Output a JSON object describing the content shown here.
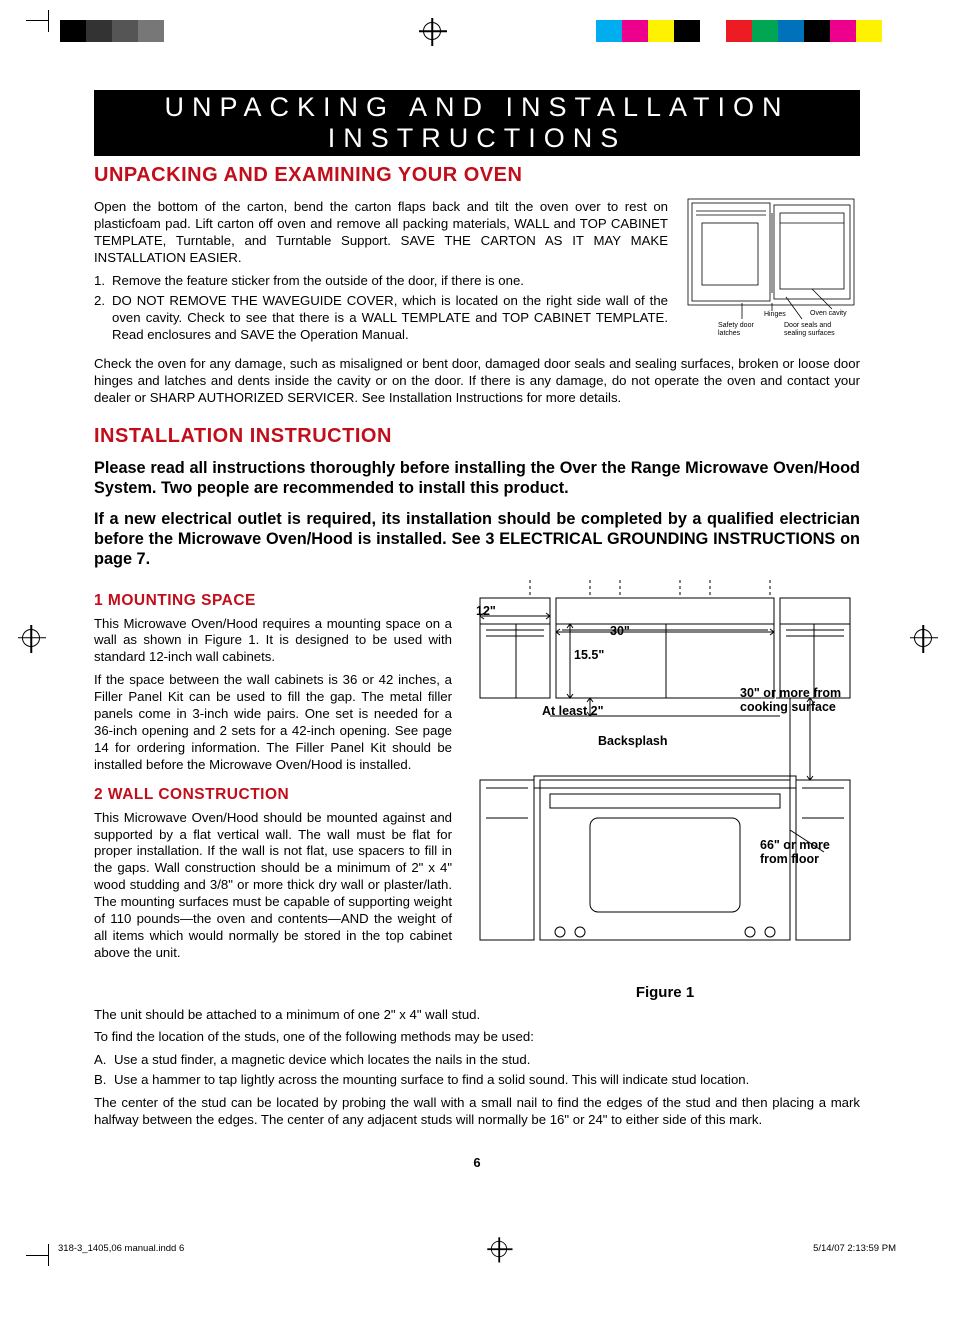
{
  "print_marks": {
    "left_bars": [
      "#000000",
      "#333333",
      "#555555",
      "#777777",
      "#ffffff",
      "#ffffff",
      "#ffffff",
      "#ffffff"
    ],
    "right_bars": [
      "#00aeef",
      "#ec008c",
      "#fff200",
      "#000000",
      "#ffffff",
      "#ed1c24",
      "#00a651",
      "#0072bc",
      "#000000",
      "#ec008c",
      "#fff200",
      "#ffffff"
    ]
  },
  "banner": "UNPACKING AND INSTALLATION INSTRUCTIONS",
  "sec1_title": "UNPACKING AND EXAMINING YOUR OVEN",
  "sec1_p1": "Open the bottom of the carton, bend the carton flaps back and tilt the oven over to rest on plasticfoam pad. Lift carton off oven and remove all packing materials, WALL and TOP CABINET TEMPLATE, Turntable, and Turntable Support.  SAVE THE CARTON AS IT MAY MAKE INSTALLATION EASIER.",
  "sec1_list": [
    "Remove the feature sticker from the outside of the door, if there is one.",
    "DO NOT REMOVE THE WAVEGUIDE COVER, which is located on the right side wall of the oven cavity. Check to see that there is a WALL TEM­PLATE and TOP CABINET TEMPLATE. Read enclosures and SAVE the Operation Manual."
  ],
  "sec1_p2": "Check the oven for any damage, such as misaligned or bent door, damaged door seals and sealing surfaces, broken or loose door hinges and latches and dents inside the cavity or on the door. If there is any damage, do not operate the oven and contact your dealer or SHARP AUTHORIZED SERVICER. See Installation Instructions for more details.",
  "oven_labels": {
    "hinges": "Hinges",
    "latches": "Safety door\nlatches",
    "cavity": "Oven cavity",
    "seals": "Door seals and\nsealing surfaces"
  },
  "sec2_title": "INSTALLATION INSTRUCTION",
  "sec2_note1": "Please read all instructions thoroughly before installing the Over the Range Microwave Oven/Hood System. Two people are recommended to install this product.",
  "sec2_note2": "If a new electrical outlet is required, its installation should be completed by a qualified electrician before the Microwave Oven/Hood is installed. See 3 ELECTRICAL GROUNDING INSTRUCTIONS on page 7.",
  "mount_title": "1  MOUNTING SPACE",
  "mount_p1": "This Microwave Oven/Hood requires a mounting space on a wall as shown in Figure 1. It is designed to be used with standard 12-inch wall cabinets.",
  "mount_p2": "If the space between the wall cabinets is 36 or 42 inches, a Filler Panel Kit can be used to fill the gap. The metal filler panels come in 3-inch wide pairs. One set is needed for a 36-inch opening and 2 sets for a 42-inch opening. See page 14 for ordering information. The Filler Panel Kit should be installed before the Microwave Oven/Hood is installed.",
  "wall_title": "2  WALL CONSTRUCTION",
  "wall_p1": "This Microwave Oven/Hood should be mounted against and supported by a flat vertical wall. The wall must be flat for proper installation. If the wall is not flat, use spacers to fill in the gaps. Wall construction should be a minimum of 2\" x 4\" wood studding and 3/8\" or more thick dry wall or plaster/lath. The mounting surfaces must be capable of supporting weight of 110 pounds—the oven and contents—AND the weight of all items which would normally be stored in the top cabinet above the unit.",
  "wall_p2": "The unit should be attached to a minimum of one 2\" x 4\"  wall stud.",
  "wall_p3": "To find the location of the studs, one of the following methods may be used:",
  "wall_methods": [
    "Use a stud finder, a magnetic device which locates the nails in the stud.",
    "Use a hammer to tap lightly across the mounting surface to find a solid sound. This will indicate stud location."
  ],
  "wall_p4": "The center of the stud can be located by probing the wall with a small nail to find the edges of the stud and then placing a mark halfway between the edges. The center of any adjacent studs will normally be 16\" or 24\" to either side of this mark.",
  "figure": {
    "caption": "Figure 1",
    "labels": {
      "d12": "12\"",
      "d30": "30\"",
      "d155": "15.5\"",
      "atleast2": "At least 2\"",
      "backsplash": "Backsplash",
      "cooksurf": "30\" or more from cooking surface",
      "floor": "66\" or more from floor"
    }
  },
  "page_number": "6",
  "footer_left": "318-3_1405,06 manual.indd   6",
  "footer_right": "5/14/07   2:13:59 PM"
}
